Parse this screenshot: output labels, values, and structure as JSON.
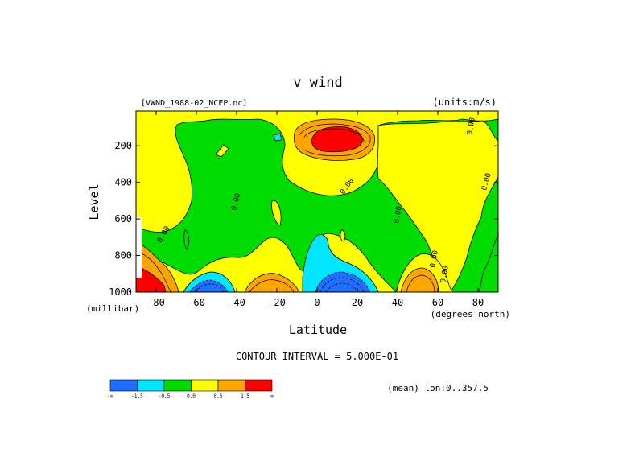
{
  "chart_data": {
    "type": "contour",
    "title": "v wind",
    "source_label": "[VWND_1988-02_NCEP.nc]",
    "units_label": "(units:m/s)",
    "xlabel": "Latitude",
    "x_units": "(degrees_north)",
    "ylabel": "Level",
    "y_units": "(millibar)",
    "xlim": [
      -90,
      90
    ],
    "ylim": [
      1000,
      10
    ],
    "y_inverted": true,
    "x_ticks": [
      -80,
      -60,
      -40,
      -20,
      0,
      20,
      40,
      60,
      80
    ],
    "x_tick_labels": [
      "-80",
      "-60",
      "-40",
      "-20",
      "0",
      "20",
      "40",
      "60",
      "80"
    ],
    "y_ticks": [
      200,
      400,
      600,
      800,
      1000
    ],
    "y_tick_labels": [
      "200",
      "400",
      "600",
      "800",
      "1000"
    ],
    "contour_interval_label": "CONTOUR INTERVAL = 5.000E-01",
    "mean_label": "(mean) lon:0..357.5",
    "contour_labels": [
      "0.00",
      "0.00",
      "0.00",
      "0.00",
      "0.00",
      "0.00",
      "0.00",
      "0.00"
    ],
    "colorbar": {
      "colors": [
        "#1e6eff",
        "#00e6ff",
        "#00dc00",
        "#ffff00",
        "#ffa500",
        "#ff0000"
      ],
      "tick_labels": [
        "-∞",
        "-1.5",
        "-0.5",
        "0.0",
        "0.5",
        "1.5",
        "∞"
      ]
    }
  }
}
